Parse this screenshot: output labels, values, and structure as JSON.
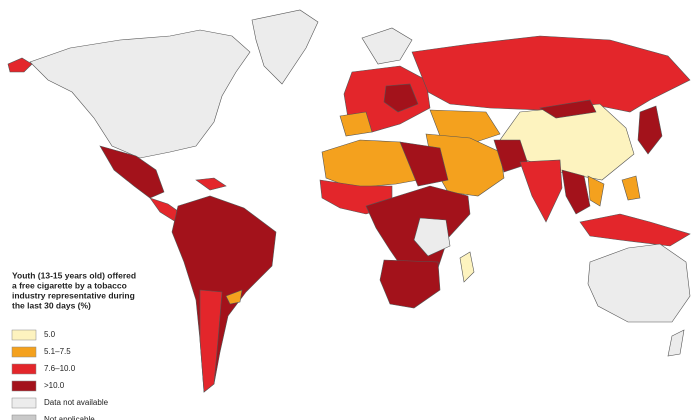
{
  "legend": {
    "title_lines": [
      "Youth (13-15 years old) offered",
      "a free cigarette by a tobacco",
      "industry representative during",
      "the last 30 days (%)"
    ],
    "items": [
      {
        "label": "5.0",
        "color": "#fdf3bf"
      },
      {
        "label": "5.1–7.5",
        "color": "#f4a11e"
      },
      {
        "label": "7.6–10.0",
        "color": "#e3262b"
      },
      {
        "label": ">10.0",
        "color": "#a3121b"
      },
      {
        "label": "Data not available",
        "color": "#ececec"
      },
      {
        "label": "Not applicable",
        "color": "#c9c9c9"
      }
    ]
  }
}
